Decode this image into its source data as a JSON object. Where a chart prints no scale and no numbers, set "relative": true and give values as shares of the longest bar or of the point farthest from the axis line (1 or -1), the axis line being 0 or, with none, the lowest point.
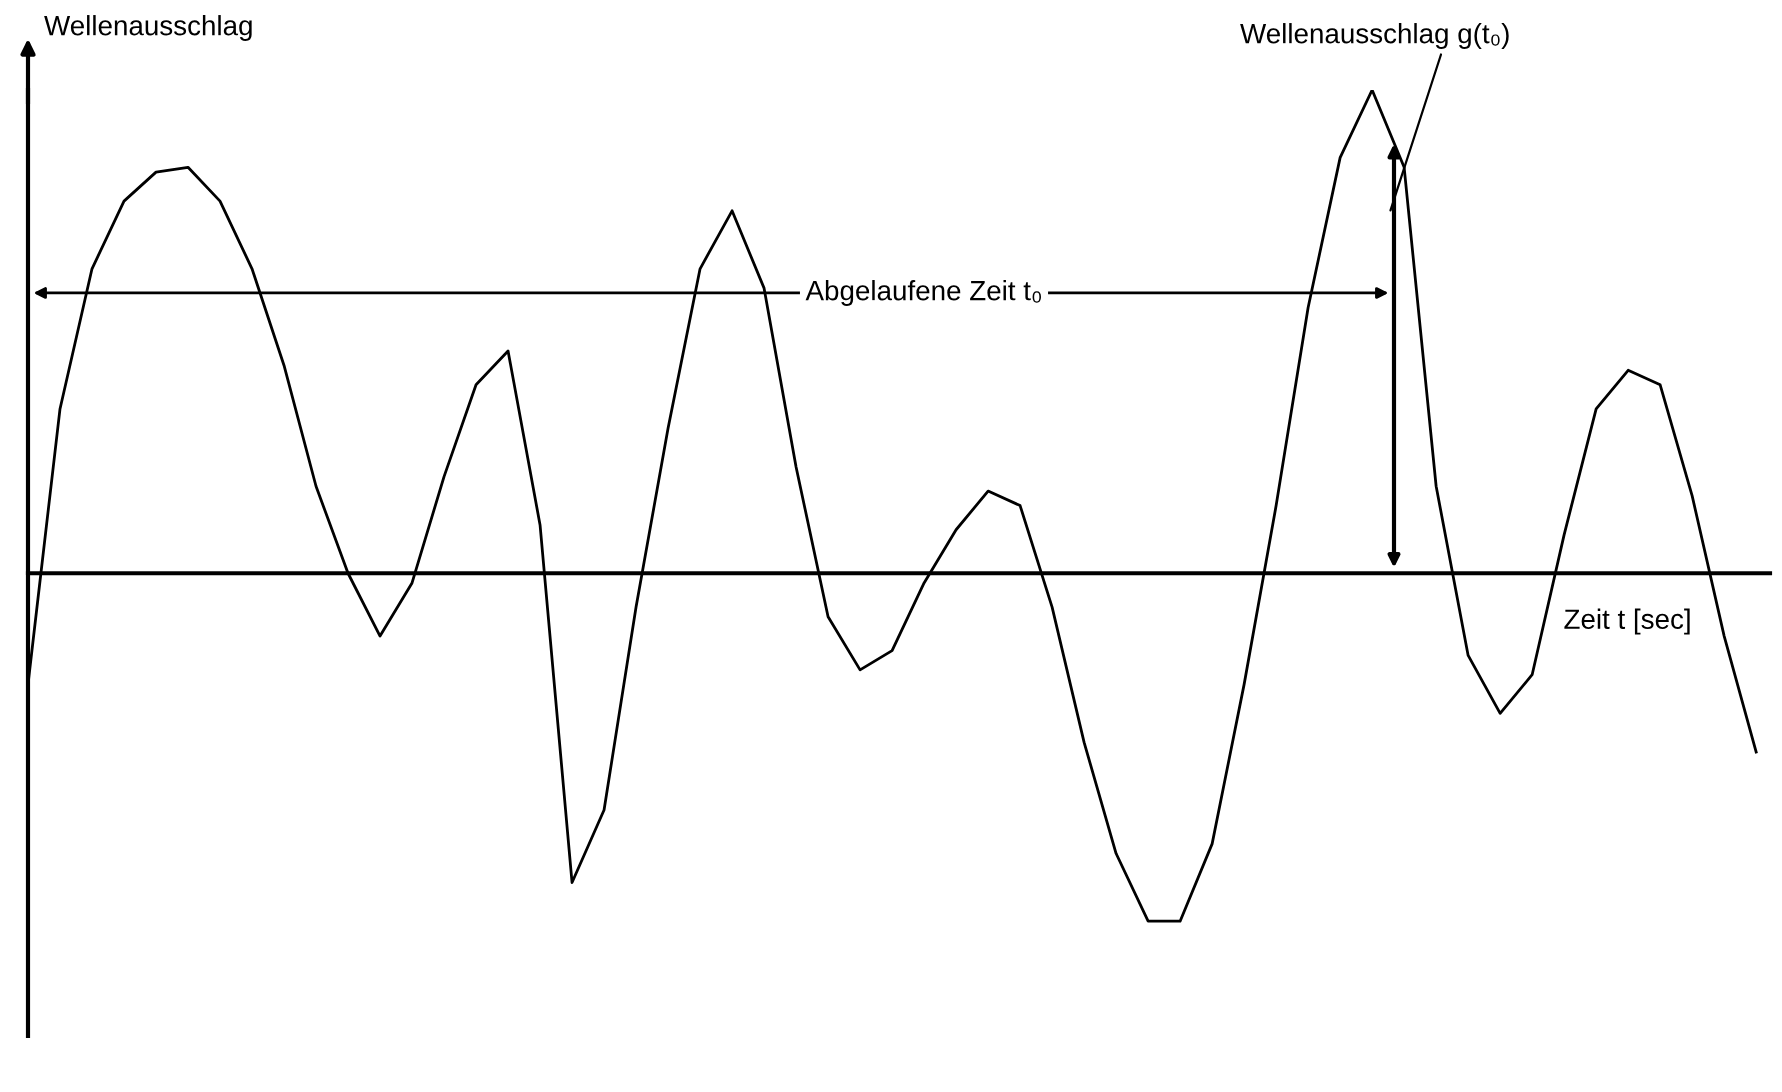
{
  "chart_data": {
    "type": "line",
    "relative": true,
    "xlabel": "Zeit t [sec]",
    "ylabel": "Wellenausschlag",
    "annotations": [
      "Abgelaufene Zeit t₀",
      "Wellenausschlag g(t₀)"
    ],
    "categories": [
      null,
      null,
      null,
      null,
      null,
      null,
      null,
      null,
      null,
      null,
      null,
      null,
      null,
      null,
      null,
      null,
      null,
      null,
      null,
      null,
      null,
      null,
      null,
      null,
      null,
      null,
      null,
      null,
      null,
      null,
      null,
      null,
      null,
      null,
      null,
      null,
      null,
      null,
      null,
      null,
      null,
      null,
      null,
      null,
      null,
      null,
      null,
      null,
      null,
      null,
      null,
      null,
      null,
      null,
      null
    ],
    "series": [
      {
        "color": "#000000",
        "values": [
          -0.23,
          0.34,
          0.63,
          0.77,
          0.83,
          0.84,
          0.77,
          0.63,
          0.43,
          0.18,
          0.0,
          -0.13,
          -0.02,
          0.2,
          0.39,
          0.46,
          0.1,
          -0.64,
          -0.49,
          -0.07,
          0.3,
          0.63,
          0.75,
          0.59,
          0.22,
          -0.09,
          -0.2,
          -0.16,
          -0.02,
          0.09,
          0.17,
          0.14,
          -0.07,
          -0.35,
          -0.58,
          -0.72,
          -0.72,
          -0.56,
          -0.23,
          0.14,
          0.55,
          0.86,
          1.0,
          0.84,
          0.18,
          -0.17,
          -0.29,
          -0.21,
          0.08,
          0.34,
          0.42,
          0.39,
          0.16,
          -0.13,
          -0.37
        ]
      }
    ],
    "legend": false,
    "marker": "none",
    "line_style": "solid"
  }
}
